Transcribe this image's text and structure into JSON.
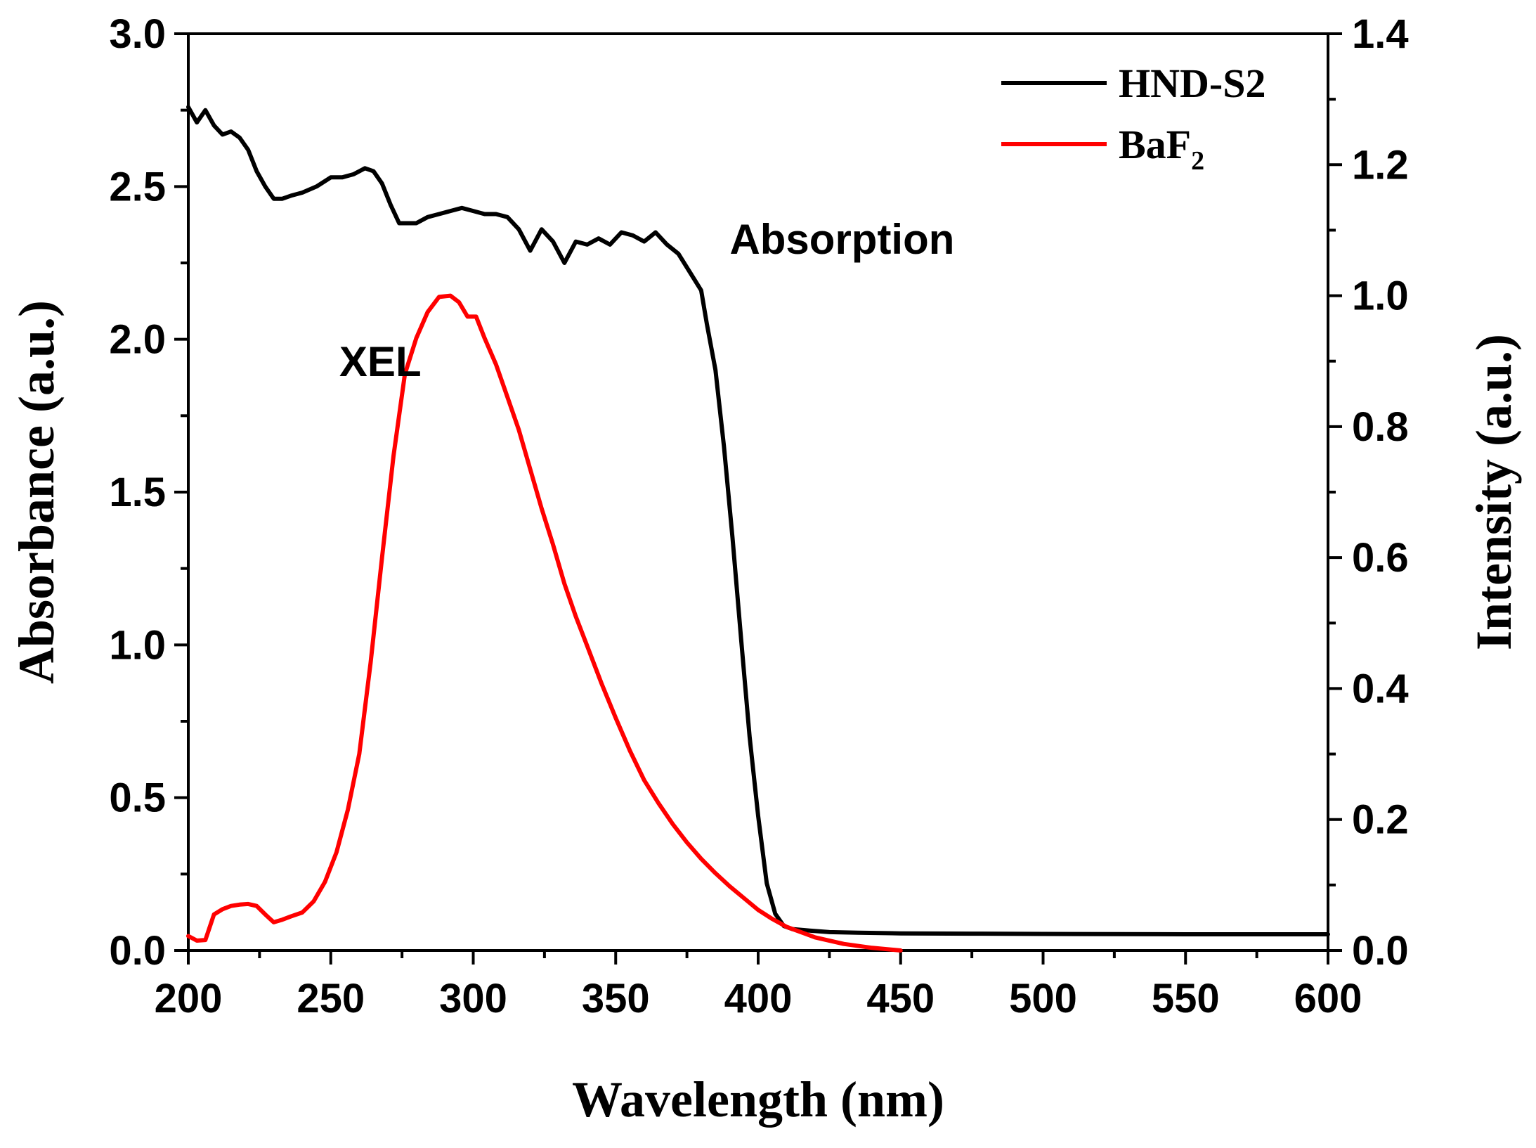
{
  "chart_data": {
    "type": "line",
    "xlabel": "Wavelength (nm)",
    "ylabel_left": "Absorbance (a.u.)",
    "ylabel_right": "Intensity (a.u.)",
    "xlim": [
      200,
      600
    ],
    "ylim_left": [
      0.0,
      3.0
    ],
    "ylim_right": [
      0.0,
      1.4
    ],
    "x_ticks": [
      "200",
      "250",
      "300",
      "350",
      "400",
      "450",
      "500",
      "550",
      "600"
    ],
    "y_left_ticks": [
      "0.0",
      "0.5",
      "1.0",
      "1.5",
      "2.0",
      "2.5",
      "3.0"
    ],
    "y_right_ticks": [
      "0.0",
      "0.2",
      "0.4",
      "0.6",
      "0.8",
      "1.0",
      "1.2",
      "1.4"
    ],
    "grid": false,
    "legend_position": "top-right",
    "annotations": [
      {
        "text": "Absorption",
        "x": 390,
        "y": 2.28,
        "axis": "left"
      },
      {
        "text": "XEL",
        "x": 253,
        "y": 1.88,
        "axis": "left"
      }
    ],
    "series": [
      {
        "name": "HND-S2",
        "label_main": "HND-S2",
        "label_sub": "",
        "color": "#000000",
        "axis": "left",
        "x": [
          200,
          203,
          206,
          209,
          212,
          215,
          218,
          221,
          224,
          227,
          230,
          233,
          236,
          240,
          245,
          250,
          254,
          258,
          262,
          265,
          268,
          271,
          274,
          277,
          280,
          284,
          288,
          292,
          296,
          300,
          304,
          308,
          312,
          316,
          320,
          324,
          328,
          332,
          336,
          340,
          344,
          348,
          352,
          356,
          360,
          364,
          368,
          372,
          376,
          380,
          382,
          385,
          388,
          391,
          394,
          397,
          400,
          403,
          406,
          409,
          412,
          418,
          425,
          435,
          450,
          475,
          500,
          550,
          600
        ],
        "y": [
          2.76,
          2.71,
          2.75,
          2.7,
          2.67,
          2.68,
          2.66,
          2.62,
          2.55,
          2.5,
          2.46,
          2.46,
          2.47,
          2.48,
          2.5,
          2.53,
          2.53,
          2.54,
          2.56,
          2.55,
          2.51,
          2.44,
          2.38,
          2.38,
          2.38,
          2.4,
          2.41,
          2.42,
          2.43,
          2.42,
          2.41,
          2.41,
          2.4,
          2.36,
          2.29,
          2.36,
          2.32,
          2.25,
          2.32,
          2.31,
          2.33,
          2.31,
          2.35,
          2.34,
          2.32,
          2.35,
          2.31,
          2.28,
          2.22,
          2.16,
          2.05,
          1.9,
          1.65,
          1.35,
          1.02,
          0.7,
          0.44,
          0.22,
          0.12,
          0.08,
          0.07,
          0.065,
          0.06,
          0.058,
          0.056,
          0.055,
          0.054,
          0.053,
          0.053
        ]
      },
      {
        "name": "BaF2",
        "label_main": "BaF",
        "label_sub": "2",
        "color": "#ff0000",
        "axis": "right",
        "x": [
          200,
          203,
          206,
          209,
          212,
          215,
          218,
          221,
          224,
          227,
          230,
          233,
          236,
          240,
          244,
          248,
          252,
          256,
          260,
          264,
          268,
          272,
          276,
          280,
          284,
          288,
          292,
          295,
          298,
          301,
          304,
          308,
          312,
          316,
          320,
          324,
          328,
          332,
          336,
          340,
          345,
          350,
          355,
          360,
          365,
          370,
          375,
          380,
          385,
          390,
          395,
          400,
          405,
          410,
          420,
          430,
          440,
          450
        ],
        "y": [
          0.022,
          0.015,
          0.016,
          0.055,
          0.063,
          0.068,
          0.07,
          0.071,
          0.068,
          0.055,
          0.043,
          0.047,
          0.052,
          0.058,
          0.075,
          0.105,
          0.15,
          0.215,
          0.3,
          0.44,
          0.6,
          0.755,
          0.88,
          0.935,
          0.975,
          0.998,
          1.0,
          0.99,
          0.968,
          0.968,
          0.935,
          0.895,
          0.845,
          0.795,
          0.735,
          0.675,
          0.62,
          0.56,
          0.51,
          0.465,
          0.408,
          0.355,
          0.305,
          0.26,
          0.225,
          0.193,
          0.165,
          0.14,
          0.118,
          0.098,
          0.08,
          0.062,
          0.048,
          0.036,
          0.02,
          0.01,
          0.004,
          0.0
        ]
      }
    ]
  }
}
